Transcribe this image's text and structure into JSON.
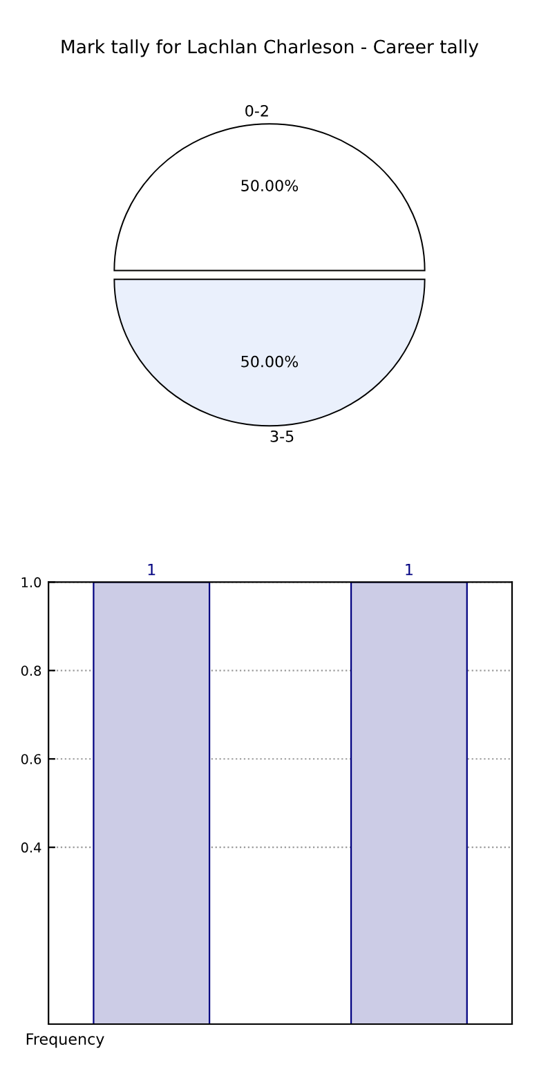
{
  "chart_data": [
    {
      "type": "pie",
      "title": "Mark tally for Lachlan Charleson - Career tally",
      "categories": [
        "0-2",
        "3-5"
      ],
      "values": [
        50,
        50
      ],
      "colors": [
        "#ffffff",
        "#eaf0fc"
      ],
      "value_labels": [
        "50.00%",
        "50.00%"
      ]
    },
    {
      "type": "bar",
      "ylabel": "Frequency",
      "categories": [
        null,
        null
      ],
      "values": [
        1,
        1
      ],
      "color": "#cccce6",
      "ylim": [
        0,
        1.0
      ],
      "yticks": [
        0.4,
        0.6,
        0.8,
        {
          "value": 1,
          "label": "1.0"
        }
      ],
      "grid": true,
      "data_labels": true
    }
  ]
}
